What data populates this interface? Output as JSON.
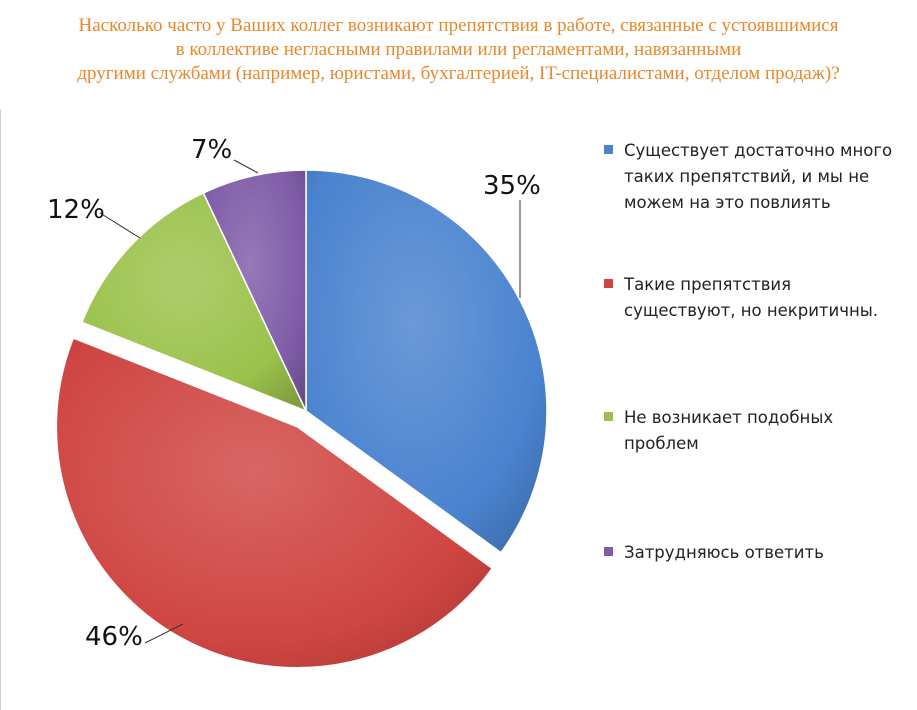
{
  "title": {
    "lines": [
      "Насколько часто у Ваших коллег возникают препятствия в работе, связанные с устоявшимися",
      "в коллективе негласными правилами или регламентами, навязанными",
      "другими службами (например, юристами, бухгалтерией, IT-специалистами, отделом продаж)?"
    ]
  },
  "chart_data": {
    "type": "pie",
    "title": "Насколько часто у Ваших коллег возникают препятствия в работе, связанные с устоявшимися в коллективе негласными правилами или регламентами, навязанными другими службами (например, юристами, бухгалтерией, IT-специалистами, отделом продаж)?",
    "slices": [
      {
        "name": "Существует достаточно много таких препятствий, и мы не можем на это повлиять",
        "value": 35,
        "label": "35%",
        "color": "#4a83cf"
      },
      {
        "name": "Такие препятствия существуют, но некритичны.",
        "value": 46,
        "label": "46%",
        "color": "#cf4542"
      },
      {
        "name": "Не возникает подобных проблем",
        "value": 12,
        "label": "12%",
        "color": "#9bc24c"
      },
      {
        "name": "Затрудняюсь ответить",
        "value": 7,
        "label": "7%",
        "color": "#7f5ca8"
      }
    ],
    "exploded": "Такие препятствия существуют, но некритичны.",
    "legend_position": "right"
  }
}
